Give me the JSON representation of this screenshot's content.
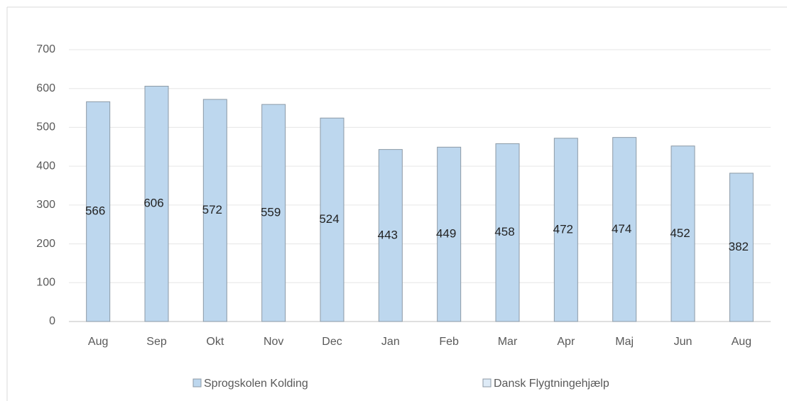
{
  "chart_data": {
    "type": "bar",
    "categories": [
      "Aug",
      "Sep",
      "Okt",
      "Nov",
      "Dec",
      "Jan",
      "Feb",
      "Mar",
      "Apr",
      "Maj",
      "Jun",
      "Aug"
    ],
    "series": [
      {
        "name": "Sprogskolen Kolding",
        "color": "#bdd7ee",
        "values": [
          566,
          606,
          572,
          559,
          524,
          443,
          449,
          458,
          472,
          474,
          452,
          382
        ]
      },
      {
        "name": "Dansk Flygtningehjælp",
        "color": "#deebf7",
        "values": [
          null,
          null,
          null,
          null,
          null,
          null,
          null,
          null,
          null,
          null,
          null,
          null
        ]
      }
    ],
    "ylim": [
      0,
      700
    ],
    "yticks": [
      0,
      100,
      200,
      300,
      400,
      500,
      600,
      700
    ],
    "grid": true,
    "legend": "bottom"
  }
}
